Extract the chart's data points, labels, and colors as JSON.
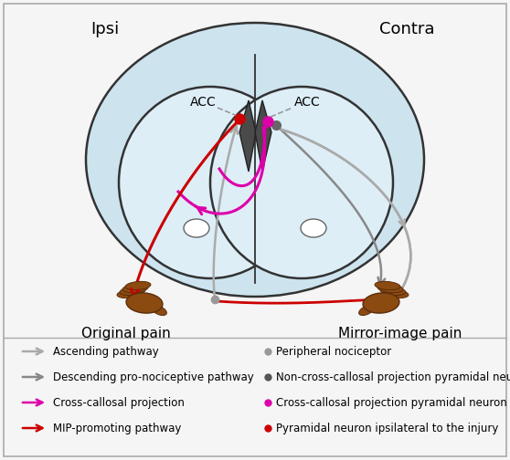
{
  "fig_width": 5.58,
  "fig_height": 5.04,
  "dpi": 100,
  "bg_color": "#f5f5f5",
  "brain_fill": "#cde4ef",
  "brain_edge": "#333333",
  "hemi_fill": "#ddeef7",
  "fold_fill": "#555555",
  "hand_color": "#8B4A10",
  "hand_edge": "#5a2d0c",
  "ipsi_label": "Ipsi",
  "contra_label": "Contra",
  "acc_label": "ACC",
  "orig_pain": "Original pain",
  "mirror_pain": "Mirror-image pain",
  "ascending_color": "#aaaaaa",
  "descending_color": "#888888",
  "callosal_color": "#dd00aa",
  "mip_color": "#cc0000",
  "noncallosal_dot_color": "#666666",
  "peri_dot_color": "#999999",
  "red_dot_color": "#cc0000",
  "magenta_dot_color": "#dd00aa",
  "legend_left_colors": [
    "#aaaaaa",
    "#888888",
    "#dd00aa",
    "#cc0000"
  ],
  "legend_left_labels": [
    "Ascending pathway",
    "Descending pro-nociceptive pathway",
    "Cross-callosal projection",
    "MIP-promoting pathway"
  ],
  "legend_right_colors": [
    "#999999",
    "#555555",
    "#dd00aa",
    "#cc0000"
  ],
  "legend_right_labels": [
    "Peripheral nociceptor",
    "Non-cross-callosal projection pyramidal neuron",
    "Cross-callosal projection pyramidal neuron",
    "Pyramidal neuron ipsilateral to the injury"
  ]
}
